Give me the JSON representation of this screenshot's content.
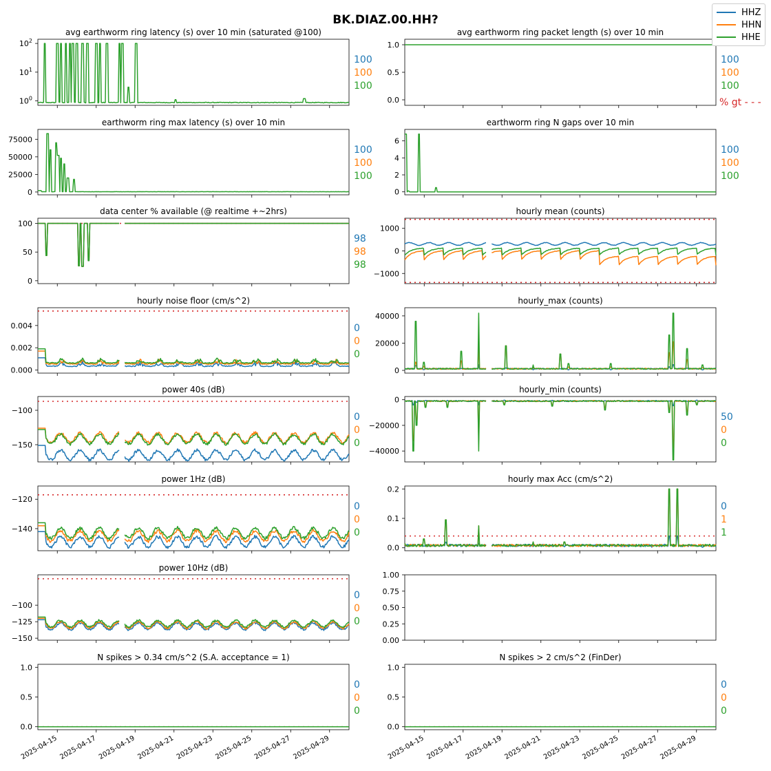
{
  "title": "BK.DIAZ.00.HH?",
  "legend": [
    {
      "name": "HHZ",
      "color": "#1f77b4"
    },
    {
      "name": "HHN",
      "color": "#ff7f0e"
    },
    {
      "name": "HHE",
      "color": "#2ca02c"
    }
  ],
  "threshold_color": "#d62728",
  "chart_data": [
    {
      "type": "line",
      "title": "avg earthworm ring latency (s)   over 10 min (saturated @100)",
      "yscale": "log",
      "ylim": [
        0.7,
        140
      ],
      "yticks": [
        {
          "v": 1,
          "base": "10",
          "exp": "0"
        },
        {
          "v": 10,
          "base": "10",
          "exp": "1"
        },
        {
          "v": 100,
          "base": "10",
          "exp": "2"
        }
      ],
      "profile": "latency",
      "right_values": [
        "100",
        "100",
        "100"
      ],
      "threshold": null
    },
    {
      "type": "line",
      "title": "avg earthworm ring packet length (s)   over 10 min",
      "ylim": [
        -0.1,
        1.1
      ],
      "yticks": [
        {
          "v": 0,
          "label": "0.0"
        },
        {
          "v": 0.5,
          "label": "0.5"
        },
        {
          "v": 1,
          "label": "1.0"
        }
      ],
      "profile": "flat",
      "base": 1.0,
      "right_values": [
        "100",
        "100",
        "100"
      ],
      "extra_label": "% gt - - -",
      "threshold": null
    },
    {
      "type": "line",
      "title": "earthworm ring max latency (s)   over 10 min",
      "ylim": [
        -4000,
        89000
      ],
      "yticks": [
        {
          "v": 0,
          "label": "0"
        },
        {
          "v": 25000,
          "label": "25000"
        },
        {
          "v": 50000,
          "label": "50000"
        },
        {
          "v": 75000,
          "label": "75000"
        }
      ],
      "profile": "maxlatency",
      "right_values": [
        "100",
        "100",
        "100"
      ],
      "threshold": null
    },
    {
      "type": "line",
      "title": "earthworm ring N gaps   over 10 min",
      "ylim": [
        -0.35,
        7.35
      ],
      "yticks": [
        {
          "v": 0,
          "label": "0"
        },
        {
          "v": 2,
          "label": "2"
        },
        {
          "v": 4,
          "label": "4"
        },
        {
          "v": 6,
          "label": "6"
        }
      ],
      "profile": "gaps",
      "right_values": [
        "100",
        "100",
        "100"
      ],
      "threshold": null
    },
    {
      "type": "line",
      "title": "data center % available (@ realtime +~2hrs)",
      "ylim": [
        -5,
        109
      ],
      "yticks": [
        {
          "v": 0,
          "label": "0"
        },
        {
          "v": 50,
          "label": "50"
        },
        {
          "v": 100,
          "label": "100"
        }
      ],
      "profile": "avail",
      "right_values": [
        "98",
        "98",
        "98"
      ],
      "threshold": 100
    },
    {
      "type": "line",
      "title": "hourly mean (counts)",
      "ylim": [
        -1450,
        1450
      ],
      "yticks": [
        {
          "v": -1000,
          "label": "−1000"
        },
        {
          "v": 0,
          "label": "0"
        },
        {
          "v": 1000,
          "label": "1000"
        }
      ],
      "profile": "mean",
      "right_values": [],
      "threshold": [
        1400,
        -1400
      ]
    },
    {
      "type": "line",
      "title": "hourly noise floor (cm/s^2)",
      "ylim": [
        -0.00028,
        0.0056
      ],
      "yticks": [
        {
          "v": 0,
          "label": "0.000"
        },
        {
          "v": 0.002,
          "label": "0.002"
        },
        {
          "v": 0.004,
          "label": "0.004"
        }
      ],
      "profile": "noise",
      "series_base": [
        0.0003,
        0.0005,
        0.0006
      ],
      "amp": 0.00045,
      "right_values": [
        "0",
        "0",
        "0"
      ],
      "threshold": 0.0053
    },
    {
      "type": "line",
      "title": "hourly_max (counts)",
      "ylim": [
        -2000,
        46000
      ],
      "yticks": [
        {
          "v": 0,
          "label": "0"
        },
        {
          "v": 20000,
          "label": "20000"
        },
        {
          "v": 40000,
          "label": "40000"
        }
      ],
      "profile": "hmax",
      "right_values": [],
      "threshold": null
    },
    {
      "type": "line",
      "title": "power 40s (dB)",
      "ylim": [
        -175,
        -80
      ],
      "yticks": [
        {
          "v": -150,
          "label": "−150"
        },
        {
          "v": -100,
          "label": "−100"
        }
      ],
      "profile": "pow",
      "series_base": [
        -165,
        -140,
        -142
      ],
      "amp": 7,
      "right_values": [
        "0",
        "0",
        "0"
      ],
      "threshold": -87
    },
    {
      "type": "line",
      "title": "hourly_min (counts)",
      "ylim": [
        -48500,
        2500
      ],
      "yticks": [
        {
          "v": -40000,
          "label": "−40000"
        },
        {
          "v": -20000,
          "label": "−20000"
        },
        {
          "v": 0,
          "label": "0"
        }
      ],
      "profile": "hmin",
      "right_values": [
        "50",
        "0",
        "0"
      ],
      "threshold": null
    },
    {
      "type": "line",
      "title": "power 1Hz (dB)",
      "ylim": [
        -155,
        -111
      ],
      "yticks": [
        {
          "v": -140,
          "label": "−140"
        },
        {
          "v": -120,
          "label": "−120"
        }
      ],
      "profile": "pow",
      "series_base": [
        -149,
        -145,
        -143
      ],
      "amp": 3.5,
      "right_values": [
        "0",
        "0",
        "0"
      ],
      "threshold": -117
    },
    {
      "type": "line",
      "title": "hourly max Acc (cm/s^2)",
      "ylim": [
        -0.01,
        0.21
      ],
      "yticks": [
        {
          "v": 0,
          "label": "0.0"
        },
        {
          "v": 0.1,
          "label": "0.1"
        },
        {
          "v": 0.2,
          "label": "0.2"
        }
      ],
      "profile": "acc",
      "right_values": [
        "0",
        "1",
        "1"
      ],
      "threshold": 0.04
    },
    {
      "type": "line",
      "title": "power 10Hz (dB)",
      "ylim": [
        -153,
        -54
      ],
      "yticks": [
        {
          "v": -150,
          "label": "−150"
        },
        {
          "v": -125,
          "label": "−125"
        },
        {
          "v": -100,
          "label": "−100"
        }
      ],
      "profile": "pow",
      "series_base": [
        -132,
        -130,
        -128
      ],
      "amp": 5,
      "right_values": [
        "0",
        "0",
        "0"
      ],
      "threshold": -60
    },
    {
      "type": "line",
      "title": "",
      "ylim": [
        0,
        1
      ],
      "yticks": [
        {
          "v": 0,
          "label": "0.00"
        },
        {
          "v": 0.25,
          "label": "0.25"
        },
        {
          "v": 0.5,
          "label": "0.50"
        },
        {
          "v": 0.75,
          "label": "0.75"
        },
        {
          "v": 1,
          "label": "1.00"
        }
      ],
      "profile": "none",
      "right_values": [],
      "threshold": null
    },
    {
      "type": "line",
      "title": "N spikes > 0.34 cm/s^2 (S.A. acceptance = 1)",
      "ylim": [
        -0.05,
        1.05
      ],
      "yticks": [
        {
          "v": 0,
          "label": "0.0"
        },
        {
          "v": 0.5,
          "label": "0.5"
        },
        {
          "v": 1,
          "label": "1.0"
        }
      ],
      "profile": "flat",
      "base": 0,
      "right_values": [
        "0",
        "0",
        "0"
      ],
      "threshold": 0
    },
    {
      "type": "line",
      "title": "N spikes > 2 cm/s^2 (FinDer)",
      "ylim": [
        -0.05,
        1.05
      ],
      "yticks": [
        {
          "v": 0,
          "label": "0.0"
        },
        {
          "v": 0.5,
          "label": "0.5"
        },
        {
          "v": 1,
          "label": "1.0"
        }
      ],
      "profile": "flat",
      "base": 0,
      "right_values": [
        "0",
        "0",
        "0"
      ],
      "threshold": 0
    }
  ],
  "x_tick_labels": [
    "2025-04-15",
    "2025-04-17",
    "2025-04-19",
    "2025-04-21",
    "2025-04-23",
    "2025-04-25",
    "2025-04-27",
    "2025-04-29"
  ],
  "x_range": [
    "2025-04-14",
    "2025-04-30"
  ]
}
